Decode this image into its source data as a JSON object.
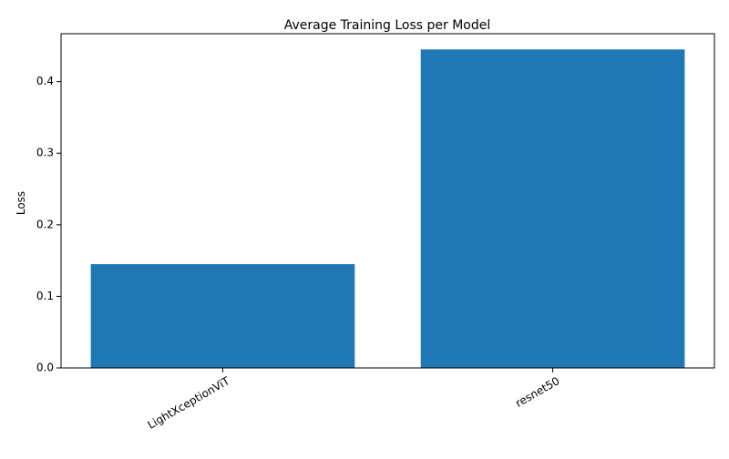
{
  "chart_data": {
    "type": "bar",
    "title": "Average Training Loss per Model",
    "xlabel": "",
    "ylabel": "Loss",
    "categories": [
      "LightXceptionViT",
      "resnet50"
    ],
    "values": [
      0.145,
      0.445
    ],
    "ylim": [
      0,
      0.467
    ],
    "yticks": [
      "0.0",
      "0.1",
      "0.2",
      "0.3",
      "0.4"
    ],
    "ytick_values": [
      0.0,
      0.1,
      0.2,
      0.3,
      0.4
    ],
    "x_tick_rotation_deg": 30,
    "grid": false,
    "legend": "none",
    "bar_color": "#1f77b4"
  }
}
